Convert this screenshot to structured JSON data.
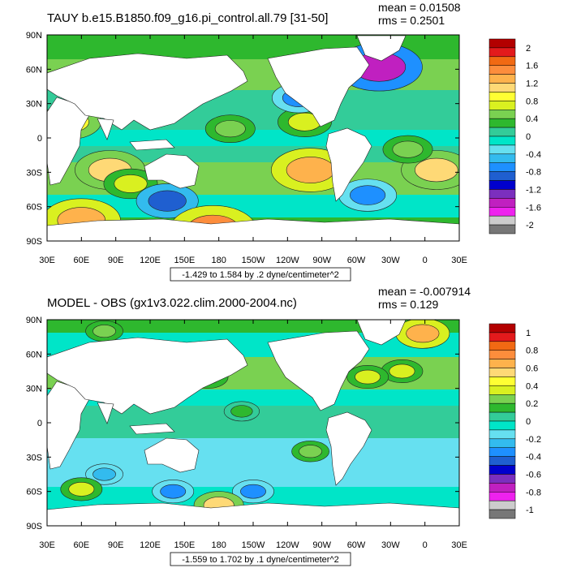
{
  "chart_data": [
    {
      "type": "heatmap",
      "title": "TAUY b.e15.B1850.f09_g16.pi_control.all.79 [31-50]",
      "stats": {
        "mean": "mean = 0.01508",
        "rms": "rms = 0.2501"
      },
      "contour_label": "-1.429 to 1.584 by .2 dyne/centimeter^2",
      "xticks": [
        "30E",
        "60E",
        "90E",
        "120E",
        "150E",
        "180",
        "150W",
        "120W",
        "90W",
        "60W",
        "30W",
        "0",
        "30E"
      ],
      "yticks": [
        "90N",
        "60N",
        "30N",
        "0",
        "30S",
        "60S",
        "90S"
      ],
      "xlim": [
        30,
        390
      ],
      "ylim": [
        -90,
        90
      ],
      "colorbar": {
        "labels": [
          "2",
          "1.6",
          "1.2",
          "0.8",
          "0.4",
          "0",
          "-0.4",
          "-0.8",
          "-1.2",
          "-1.6",
          "-2"
        ],
        "colors": [
          "#b30000",
          "#e31a1c",
          "#f16913",
          "#fd8d3c",
          "#feb24c",
          "#fed976",
          "#ffff33",
          "#d9f020",
          "#7ad151",
          "#2eb82e",
          "#33cc99",
          "#00e5c8",
          "#66e0f0",
          "#33bbee",
          "#1e90ff",
          "#1f5fd0",
          "#0000cd",
          "#7b2fbe",
          "#c020c0",
          "#ee22ee",
          "#cccccc",
          "#777777"
        ]
      },
      "features": [
        {
          "lon": 85,
          "lat": -28,
          "value": 1.0
        },
        {
          "lon": 103,
          "lat": -40,
          "value": 0.6
        },
        {
          "lon": 260,
          "lat": -28,
          "value": 1.2
        },
        {
          "lon": 370,
          "lat": -28,
          "value": 1.0
        },
        {
          "lon": 345,
          "lat": -10,
          "value": 0.5
        },
        {
          "lon": 190,
          "lat": 8,
          "value": 0.5
        },
        {
          "lon": 255,
          "lat": 14,
          "value": 0.6
        },
        {
          "lon": 50,
          "lat": 14,
          "value": 0.8
        },
        {
          "lon": 135,
          "lat": -55,
          "value": -0.8
        },
        {
          "lon": 250,
          "lat": 35,
          "value": -0.6
        },
        {
          "lon": 310,
          "lat": -50,
          "value": -0.7
        },
        {
          "lon": 320,
          "lat": 62,
          "value": -1.4
        },
        {
          "lon": 175,
          "lat": -80,
          "value": 1.4
        },
        {
          "lon": 60,
          "lat": -72,
          "value": 1.2
        }
      ]
    },
    {
      "type": "heatmap",
      "title": "MODEL - OBS (gx1v3.022.clim.2000-2004.nc)",
      "stats": {
        "mean": "mean = -0.007914",
        "rms": "rms = 0.129"
      },
      "contour_label": "-1.559 to 1.702 by .1 dyne/centimeter^2",
      "xticks": [
        "30E",
        "60E",
        "90E",
        "120E",
        "150E",
        "180",
        "150W",
        "120W",
        "90W",
        "60W",
        "30W",
        "0",
        "30E"
      ],
      "yticks": [
        "90N",
        "60N",
        "30N",
        "0",
        "30S",
        "60S",
        "90S"
      ],
      "xlim": [
        30,
        390
      ],
      "ylim": [
        -90,
        90
      ],
      "colorbar": {
        "labels": [
          "1",
          "0.8",
          "0.6",
          "0.4",
          "0.2",
          "0",
          "-0.2",
          "-0.4",
          "-0.6",
          "-0.8",
          "-1"
        ],
        "colors": [
          "#b30000",
          "#e31a1c",
          "#f16913",
          "#fd8d3c",
          "#feb24c",
          "#fed976",
          "#ffff33",
          "#d9f020",
          "#7ad151",
          "#2eb82e",
          "#33cc99",
          "#00e5c8",
          "#66e0f0",
          "#33bbee",
          "#1e90ff",
          "#1f5fd0",
          "#0000cd",
          "#7b2fbe",
          "#c020c0",
          "#ee22ee",
          "#cccccc",
          "#777777"
        ]
      },
      "features": [
        {
          "lon": 170,
          "lat": 40,
          "value": 0.3
        },
        {
          "lon": 150,
          "lat": 50,
          "value": 0.35
        },
        {
          "lon": 125,
          "lat": 30,
          "value": 0.3
        },
        {
          "lon": 340,
          "lat": 45,
          "value": 0.3
        },
        {
          "lon": 358,
          "lat": 78,
          "value": 0.6
        },
        {
          "lon": 310,
          "lat": 40,
          "value": 0.3
        },
        {
          "lon": 260,
          "lat": -25,
          "value": 0.2
        },
        {
          "lon": 200,
          "lat": 10,
          "value": 0.15
        },
        {
          "lon": 140,
          "lat": -60,
          "value": -0.3
        },
        {
          "lon": 210,
          "lat": -60,
          "value": -0.3
        },
        {
          "lon": 80,
          "lat": -45,
          "value": -0.2
        },
        {
          "lon": 60,
          "lat": -58,
          "value": 0.3
        },
        {
          "lon": 180,
          "lat": -72,
          "value": 0.5
        },
        {
          "lon": 80,
          "lat": 80,
          "value": 0.2
        }
      ]
    }
  ]
}
